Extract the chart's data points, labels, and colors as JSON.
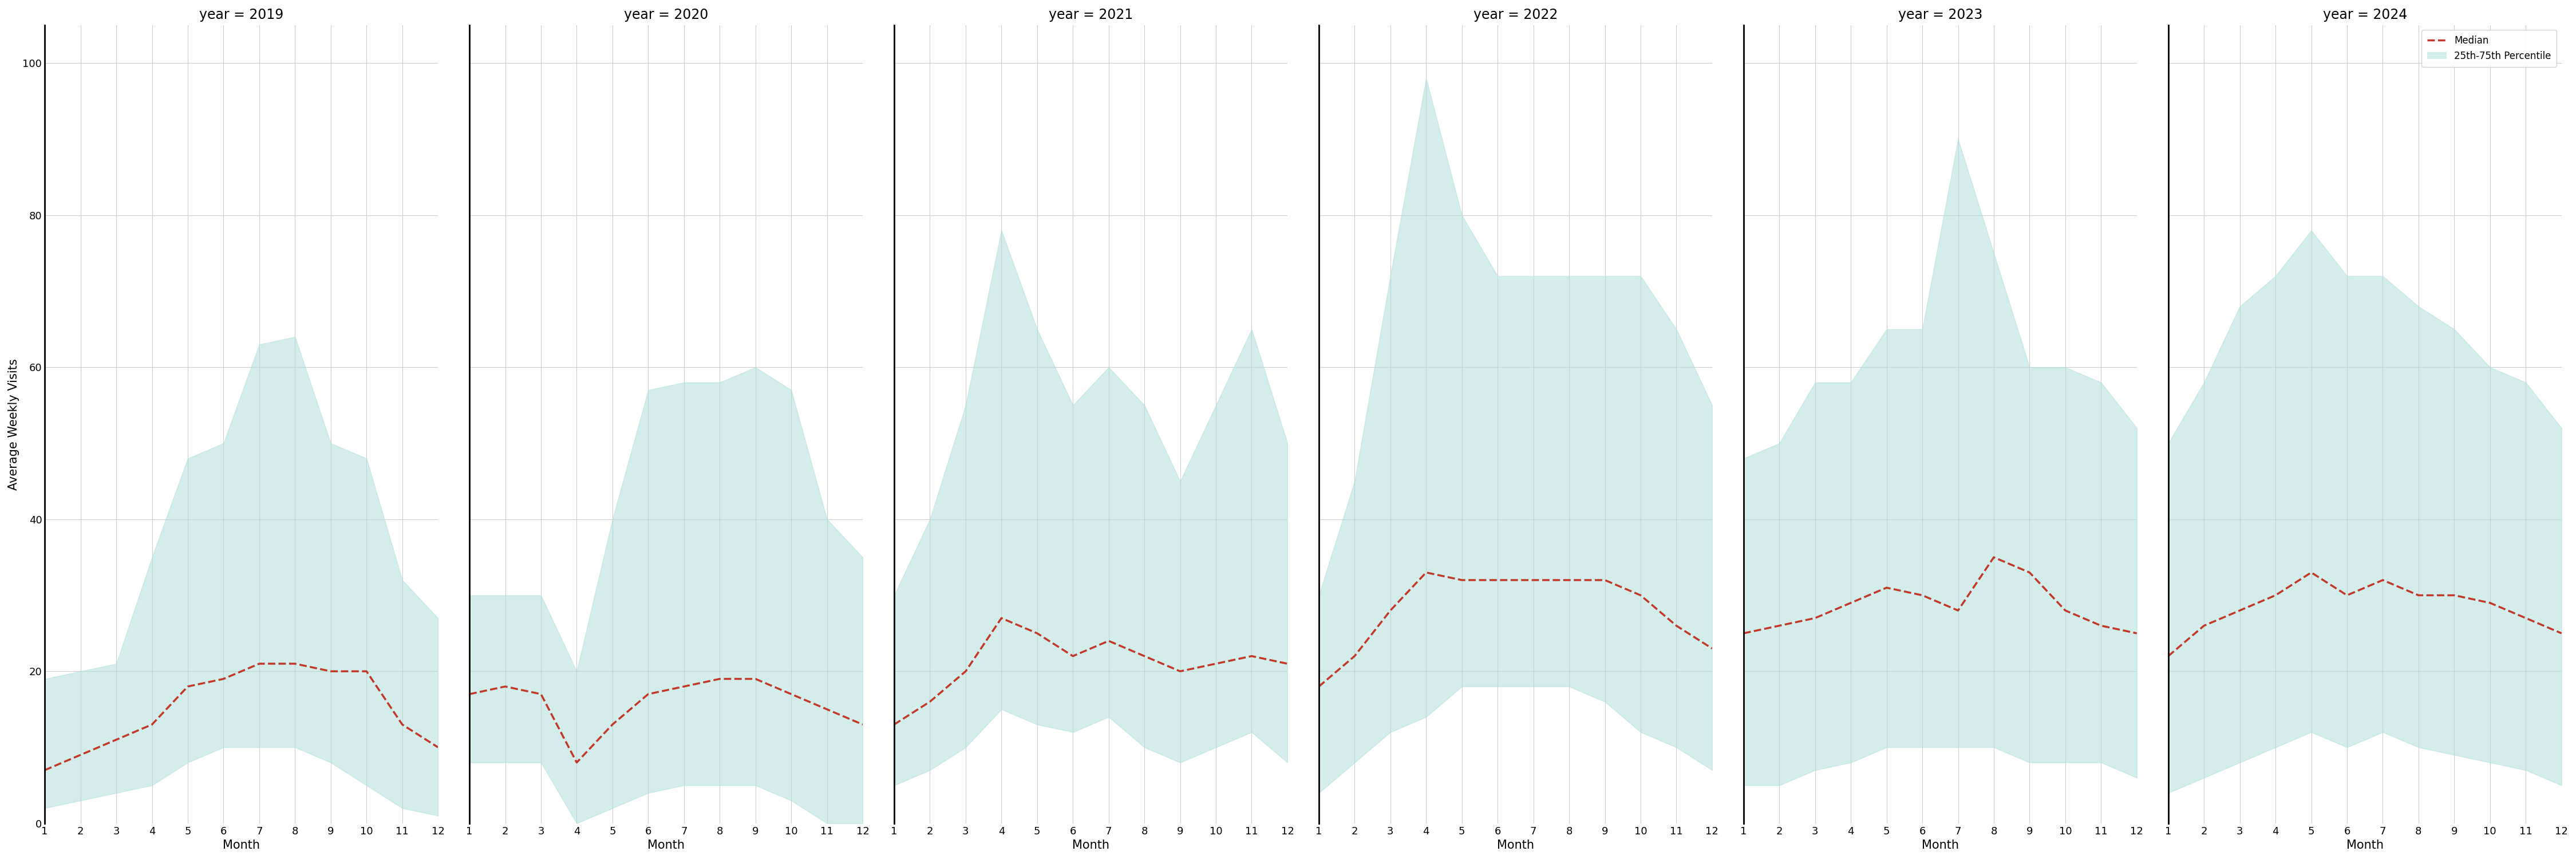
{
  "years": [
    2019,
    2020,
    2021,
    2022,
    2023,
    2024
  ],
  "months": [
    1,
    2,
    3,
    4,
    5,
    6,
    7,
    8,
    9,
    10,
    11,
    12
  ],
  "median": {
    "2019": [
      7,
      9,
      11,
      13,
      18,
      19,
      21,
      21,
      20,
      20,
      13,
      10
    ],
    "2020": [
      17,
      18,
      17,
      8,
      13,
      17,
      18,
      19,
      19,
      17,
      15,
      13
    ],
    "2021": [
      13,
      16,
      20,
      27,
      25,
      22,
      24,
      22,
      20,
      21,
      22,
      21
    ],
    "2022": [
      18,
      22,
      28,
      33,
      32,
      32,
      32,
      32,
      32,
      30,
      26,
      23
    ],
    "2023": [
      25,
      26,
      27,
      29,
      31,
      30,
      28,
      35,
      33,
      28,
      26,
      25
    ],
    "2024": [
      22,
      26,
      28,
      30,
      33,
      30,
      32,
      30,
      30,
      29,
      27,
      25
    ]
  },
  "upper": {
    "2019": [
      19,
      20,
      21,
      35,
      48,
      50,
      63,
      64,
      50,
      48,
      32,
      27
    ],
    "2020": [
      30,
      30,
      30,
      20,
      40,
      57,
      58,
      58,
      60,
      57,
      40,
      35
    ],
    "2021": [
      30,
      40,
      55,
      78,
      65,
      55,
      60,
      55,
      45,
      55,
      65,
      50
    ],
    "2022": [
      30,
      45,
      72,
      98,
      80,
      72,
      72,
      72,
      72,
      72,
      65,
      55
    ],
    "2023": [
      48,
      50,
      58,
      58,
      65,
      65,
      90,
      75,
      60,
      60,
      58,
      52
    ],
    "2024": [
      50,
      58,
      68,
      72,
      78,
      72,
      72,
      68,
      65,
      60,
      58,
      52
    ]
  },
  "lower": {
    "2019": [
      2,
      3,
      4,
      5,
      8,
      10,
      10,
      10,
      8,
      5,
      2,
      1
    ],
    "2020": [
      8,
      8,
      8,
      0,
      2,
      4,
      5,
      5,
      5,
      3,
      0,
      0
    ],
    "2021": [
      5,
      7,
      10,
      15,
      13,
      12,
      14,
      10,
      8,
      10,
      12,
      8
    ],
    "2022": [
      4,
      8,
      12,
      14,
      18,
      18,
      18,
      18,
      16,
      12,
      10,
      7
    ],
    "2023": [
      5,
      5,
      7,
      8,
      10,
      10,
      10,
      10,
      8,
      8,
      8,
      6
    ],
    "2024": [
      4,
      6,
      8,
      10,
      12,
      10,
      12,
      10,
      9,
      8,
      7,
      5
    ]
  },
  "fill_color": "#b2dfdb",
  "fill_alpha": 0.55,
  "median_color": "#c0392b",
  "median_lw": 2.5,
  "ylabel": "Average Weekly Visits",
  "xlabel": "Month",
  "ylim": [
    0,
    105
  ],
  "plot_bg": "#ffffff",
  "fig_bg": "#ffffff",
  "grid_color": "#cccccc",
  "spine_color": "#000000"
}
